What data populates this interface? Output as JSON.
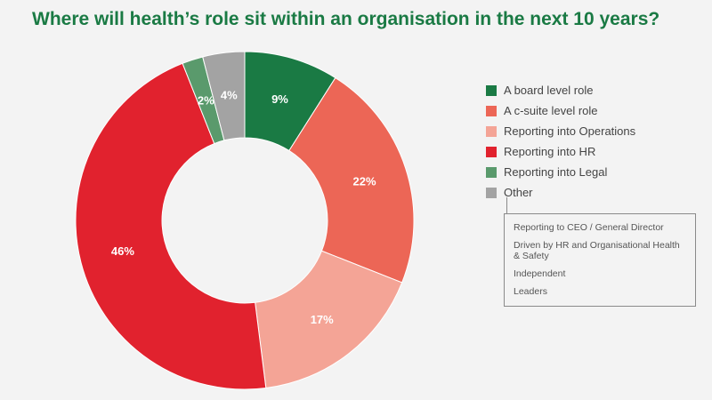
{
  "chart_data": {
    "type": "pie",
    "title": "Where will health’s role sit within an organisation in the next 10 years?",
    "donut": true,
    "slices": [
      {
        "label": "A board level role",
        "value": 9,
        "display": "9%",
        "color": "#1a7a44",
        "label_color": "#ffffff"
      },
      {
        "label": "A c-suite level role",
        "value": 22,
        "display": "22%",
        "color": "#ec6656",
        "label_color": "#ffffff"
      },
      {
        "label": "Reporting into Operations",
        "value": 17,
        "display": "17%",
        "color": "#f4a496",
        "label_color": "#ffffff"
      },
      {
        "label": "Reporting into HR",
        "value": 46,
        "display": "46%",
        "color": "#e1222e",
        "label_color": "#ffffff"
      },
      {
        "label": "Reporting into Legal",
        "value": 2,
        "display": "2%",
        "color": "#5a9a6c",
        "label_color": "#ffffff"
      },
      {
        "label": "Other",
        "value": 4,
        "display": "4%",
        "color": "#a3a3a3",
        "label_color": "#ffffff"
      }
    ],
    "legend_position": "right",
    "other_breakdown": [
      "Reporting to CEO / General Director",
      "Driven by HR and Organisational Health & Safety",
      "Independent",
      "Leaders"
    ]
  }
}
